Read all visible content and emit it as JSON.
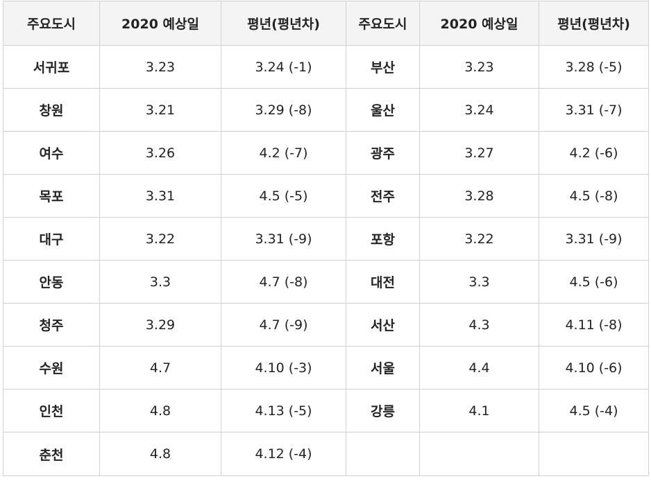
{
  "headers": [
    "주요도시",
    "2020 예상일",
    "평년(평년차)",
    "주요도시",
    "2020 예상일",
    "평년(평년차)"
  ],
  "rows": [
    {
      "left": {
        "city": "서귀포",
        "date": "3.23",
        "normal": "3.24 (-1)"
      },
      "right": {
        "city": "부산",
        "date": "3.23",
        "normal": "3.28 (-5)"
      }
    },
    {
      "left": {
        "city": "창원",
        "date": "3.21",
        "normal": "3.29 (-8)"
      },
      "right": {
        "city": "울산",
        "date": "3.24",
        "normal": "3.31 (-7)"
      }
    },
    {
      "left": {
        "city": "여수",
        "date": "3.26",
        "normal": "4.2 (-7)"
      },
      "right": {
        "city": "광주",
        "date": "3.27",
        "normal": "4.2 (-6)"
      }
    },
    {
      "left": {
        "city": "목포",
        "date": "3.31",
        "normal": "4.5 (-5)"
      },
      "right": {
        "city": "전주",
        "date": "3.28",
        "normal": "4.5 (-8)"
      }
    },
    {
      "left": {
        "city": "대구",
        "date": "3.22",
        "normal": "3.31 (-9)"
      },
      "right": {
        "city": "포항",
        "date": "3.22",
        "normal": "3.31 (-9)"
      }
    },
    {
      "left": {
        "city": "안동",
        "date": "3.3",
        "normal": "4.7 (-8)"
      },
      "right": {
        "city": "대전",
        "date": "3.3",
        "normal": "4.5 (-6)"
      }
    },
    {
      "left": {
        "city": "청주",
        "date": "3.29",
        "normal": "4.7 (-9)"
      },
      "right": {
        "city": "서산",
        "date": "4.3",
        "normal": "4.11 (-8)"
      }
    },
    {
      "left": {
        "city": "수원",
        "date": "4.7",
        "normal": "4.10 (-3)"
      },
      "right": {
        "city": "서울",
        "date": "4.4",
        "normal": "4.10 (-6)"
      }
    },
    {
      "left": {
        "city": "인천",
        "date": "4.8",
        "normal": "4.13 (-5)"
      },
      "right": {
        "city": "강릉",
        "date": "4.1",
        "normal": "4.5 (-4)"
      }
    },
    {
      "left": {
        "city": "춘천",
        "date": "4.8",
        "normal": "4.12 (-4)"
      },
      "right": {
        "city": "",
        "date": "",
        "normal": ""
      }
    }
  ]
}
